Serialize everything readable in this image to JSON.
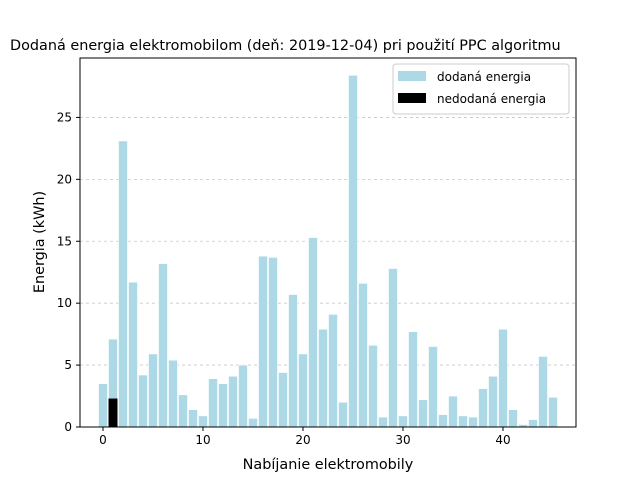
{
  "chart_data": {
    "type": "bar",
    "title": "Dodaná energia elektromobilom (deň: 2019-12-04) pri použití PPC algoritmu",
    "xlabel": "Nabíjanie elektromobily",
    "ylabel": "Energia (kWh)",
    "xlim": [
      -2.3,
      47.3
    ],
    "ylim": [
      0,
      29.8
    ],
    "xticks": [
      0,
      10,
      20,
      30,
      40
    ],
    "yticks": [
      0,
      5,
      10,
      15,
      20,
      25
    ],
    "grid": "horizontal dashed",
    "legend_position": "top-right",
    "x": [
      0,
      1,
      2,
      3,
      4,
      5,
      6,
      7,
      8,
      9,
      10,
      11,
      12,
      13,
      14,
      15,
      16,
      17,
      18,
      19,
      20,
      21,
      22,
      23,
      24,
      25,
      26,
      27,
      28,
      29,
      30,
      31,
      32,
      33,
      34,
      35,
      36,
      37,
      38,
      39,
      40,
      41,
      42,
      43,
      44,
      45
    ],
    "series": [
      {
        "name": "dodaná energia",
        "color": "#add8e6",
        "values": [
          3.5,
          7.1,
          23.1,
          11.7,
          4.2,
          5.9,
          13.2,
          5.4,
          2.6,
          1.4,
          0.9,
          3.9,
          3.5,
          4.1,
          5.0,
          0.7,
          13.8,
          13.7,
          4.4,
          10.7,
          5.9,
          15.3,
          7.9,
          9.1,
          2.0,
          28.4,
          11.6,
          6.6,
          0.8,
          12.8,
          0.9,
          7.7,
          2.2,
          6.5,
          1.0,
          2.5,
          0.9,
          0.8,
          3.1,
          4.1,
          7.9,
          1.4,
          0.2,
          0.6,
          5.7,
          2.4
        ]
      },
      {
        "name": "nedodaná energia",
        "color": "#000000",
        "values": [
          0,
          2.3,
          0,
          0,
          0,
          0,
          0,
          0,
          0,
          0,
          0,
          0,
          0,
          0,
          0,
          0,
          0,
          0,
          0,
          0,
          0,
          0,
          0,
          0,
          0,
          0,
          0,
          0,
          0,
          0,
          0,
          0,
          0,
          0,
          0,
          0,
          0,
          0,
          0,
          0,
          0,
          0,
          0,
          0,
          0,
          0
        ]
      }
    ]
  }
}
